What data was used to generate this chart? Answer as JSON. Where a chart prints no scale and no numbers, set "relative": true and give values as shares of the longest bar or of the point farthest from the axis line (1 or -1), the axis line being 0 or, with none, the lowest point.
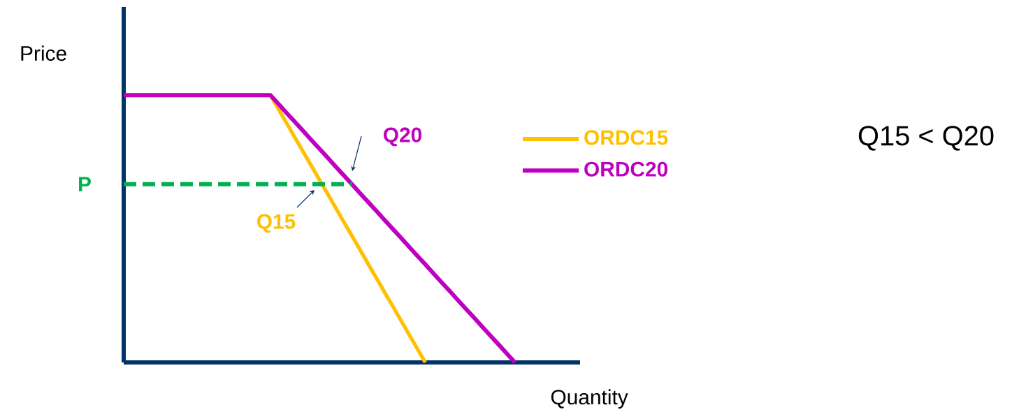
{
  "chart_data": {
    "type": "line",
    "relative": true,
    "xlabel": "Quantity",
    "ylabel": "Price",
    "legend": "right",
    "marker": "none",
    "categories": [
      null,
      null,
      null,
      null,
      null,
      null,
      null,
      null,
      null,
      null,
      null,
      null,
      null,
      null,
      null,
      null,
      null,
      null,
      null,
      null,
      null,
      null,
      null,
      null,
      null,
      null,
      null,
      null,
      null,
      null,
      null,
      null,
      null,
      null,
      null,
      null,
      null,
      null,
      null,
      null,
      null,
      null,
      null,
      null,
      null,
      null,
      null,
      null,
      null,
      null,
      null,
      null,
      null,
      null,
      null,
      null,
      null
    ],
    "series": [
      {
        "name": "ORDC15",
        "color": "#ffc000",
        "values": [
          null,
          null,
          null,
          null,
          null,
          null,
          null,
          null,
          null,
          null,
          null,
          null,
          null,
          null,
          null,
          null,
          null,
          null,
          1,
          0.947,
          0.895,
          0.842,
          0.789,
          0.737,
          0.684,
          0.632,
          0.579,
          0.526,
          0.474,
          0.421,
          0.368,
          0.316,
          0.263,
          0.211,
          0.158,
          0.105,
          0.053,
          0,
          null,
          null,
          null,
          null,
          null,
          null,
          null,
          null,
          null,
          null,
          null,
          null,
          null,
          null,
          null,
          null,
          null,
          null,
          null
        ]
      },
      {
        "name": "ORDC20",
        "color": "#c000c0",
        "values": [
          1,
          1,
          1,
          1,
          1,
          1,
          1,
          1,
          1,
          1,
          1,
          1,
          1,
          1,
          1,
          1,
          1,
          1,
          1,
          0.967,
          0.933,
          0.9,
          0.867,
          0.833,
          0.8,
          0.767,
          0.733,
          0.7,
          0.667,
          0.633,
          0.6,
          0.567,
          0.533,
          0.5,
          0.467,
          0.433,
          0.4,
          0.367,
          0.333,
          0.3,
          0.267,
          0.233,
          0.2,
          0.167,
          0.133,
          0.1,
          0.067,
          0.033,
          0,
          null,
          null,
          null,
          null,
          null,
          null,
          null,
          null
        ]
      },
      {
        "name": "P",
        "color": "#00b050",
        "line_style": "dashed",
        "values": [
          0.667,
          0.667,
          0.667,
          0.667,
          0.667,
          0.667,
          0.667,
          0.667,
          0.667,
          0.667,
          0.667,
          0.667,
          0.667,
          0.667,
          0.667,
          0.667,
          0.667,
          0.667,
          0.667,
          0.667,
          0.667,
          0.667,
          0.667,
          0.667,
          0.667,
          0.667,
          0.667,
          0.667,
          0.667,
          null,
          null,
          null,
          null,
          null,
          null,
          null,
          null,
          null,
          null,
          null,
          null,
          null,
          null,
          null,
          null,
          null,
          null,
          null,
          null,
          null,
          null,
          null,
          null,
          null,
          null,
          null,
          null
        ]
      }
    ],
    "annotations": [
      "Q20",
      "Q15",
      "Q15 < Q20"
    ]
  }
}
